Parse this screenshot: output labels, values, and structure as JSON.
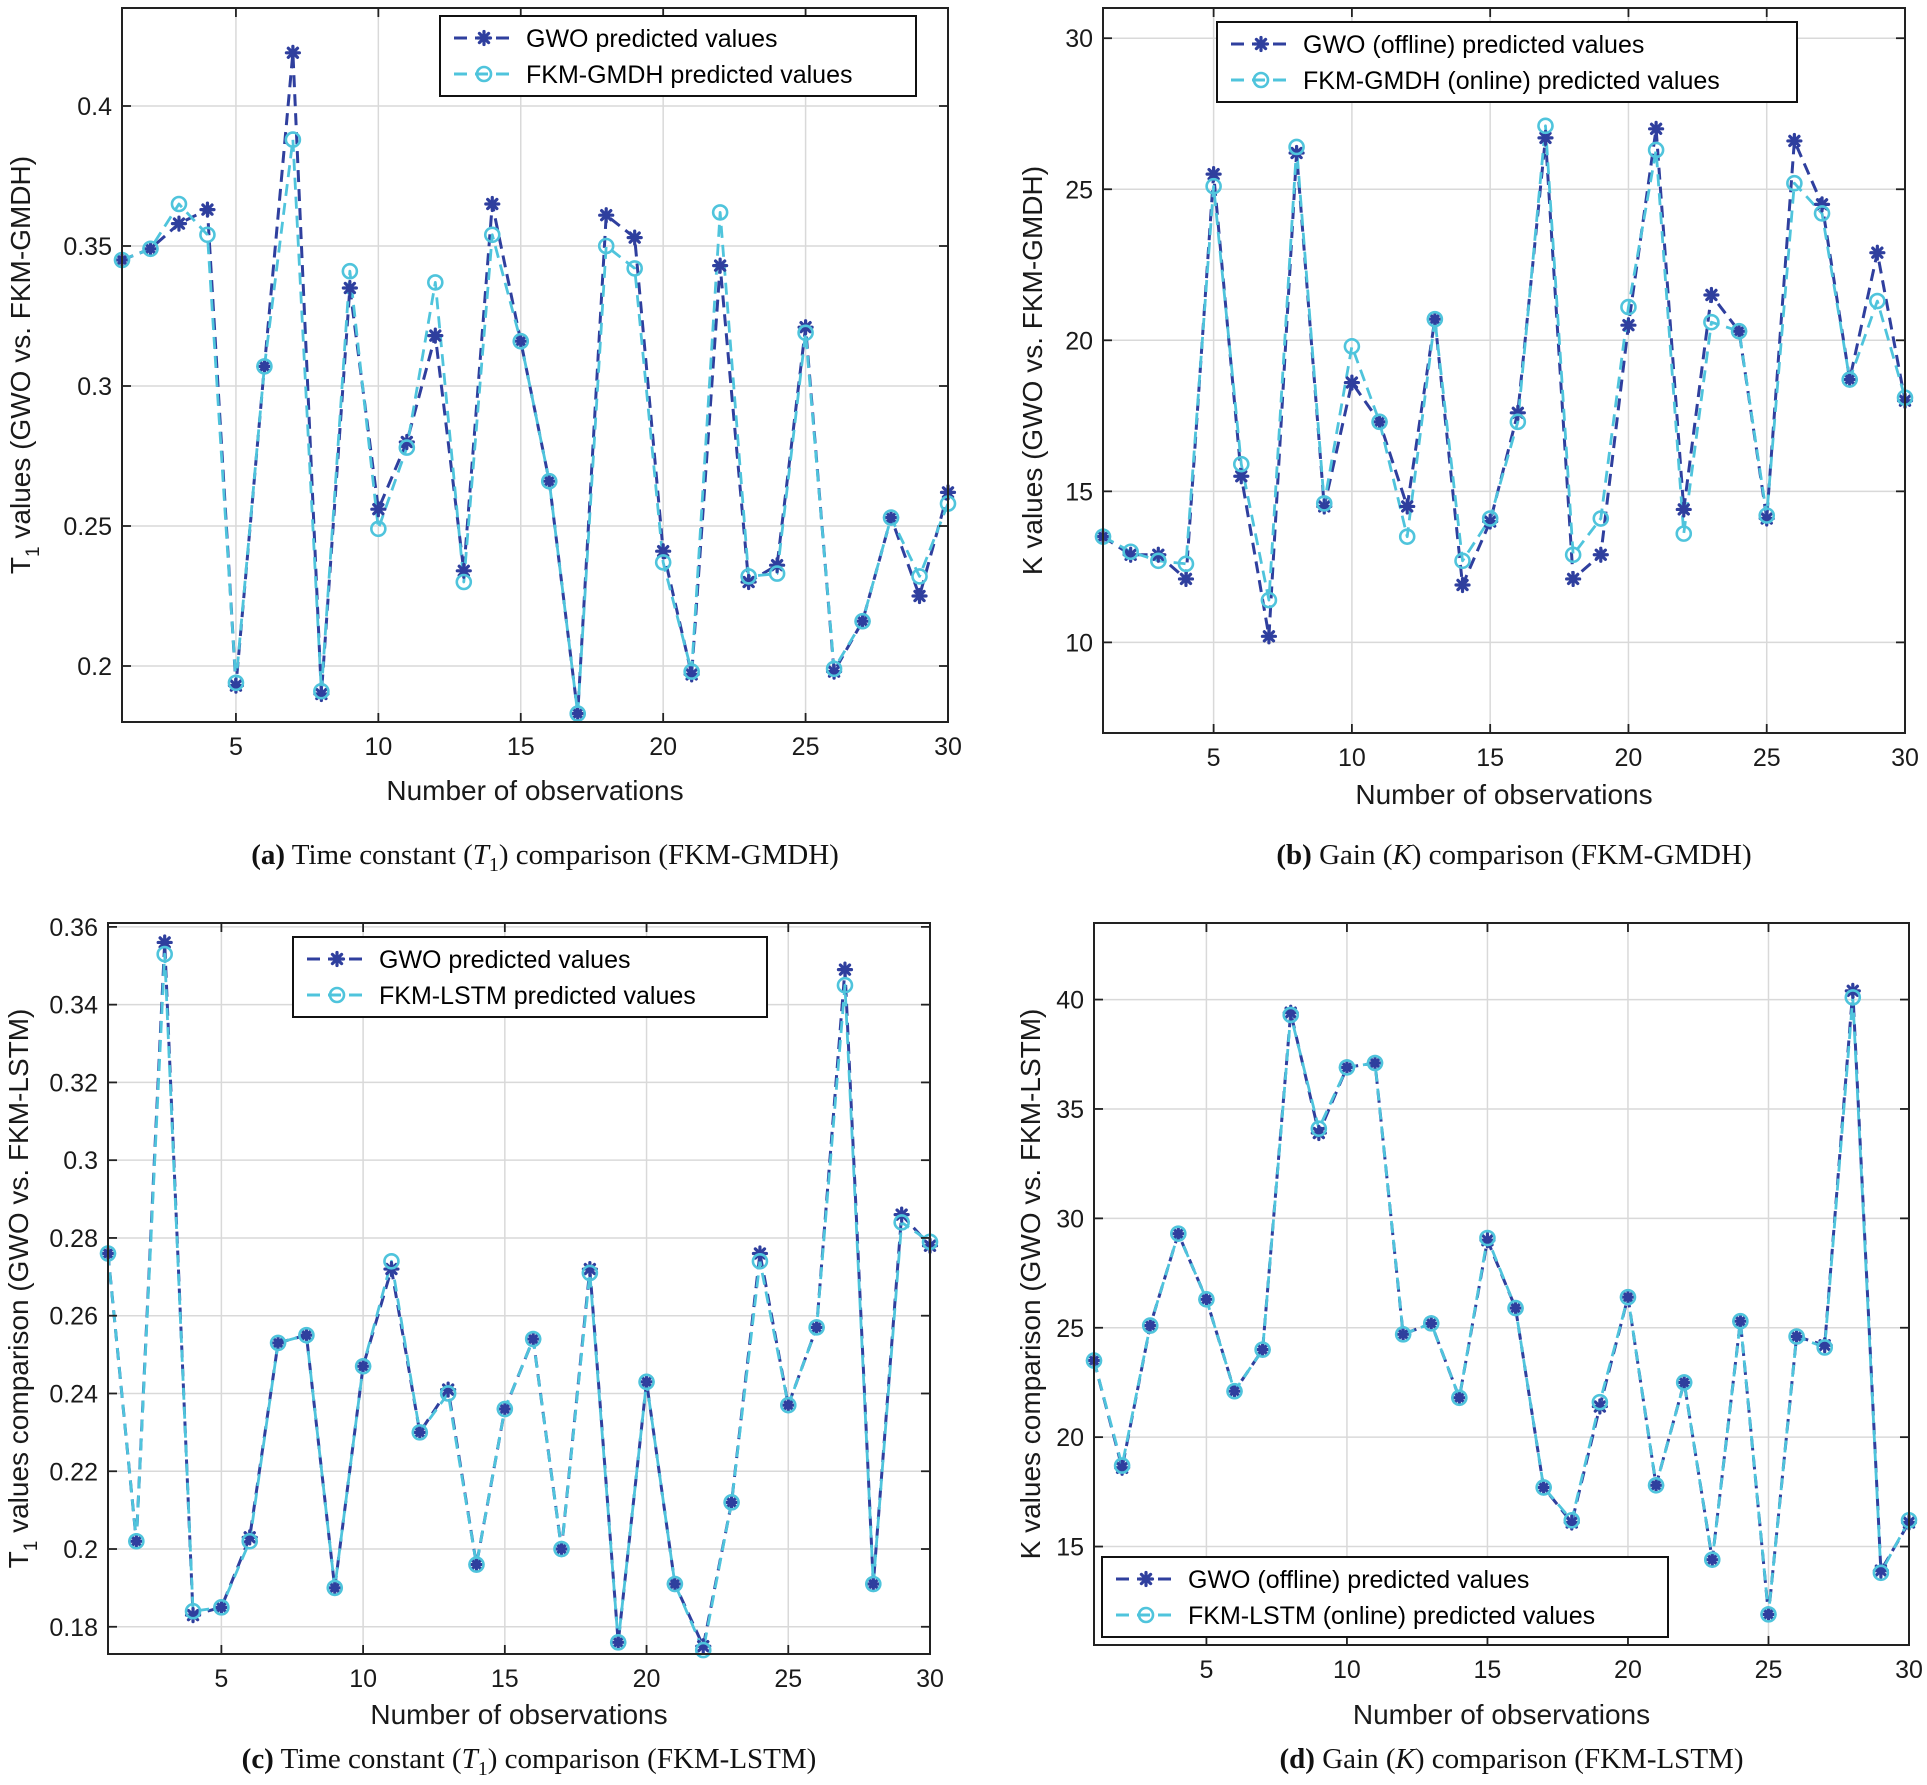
{
  "colors": {
    "gwo": "#2f3f9e",
    "fkm": "#4fc4dc",
    "grid": "#d9d9d9",
    "axis": "#222222"
  },
  "chart_data": [
    {
      "type": "line",
      "panel": "a",
      "x": [
        1,
        2,
        3,
        4,
        5,
        6,
        7,
        8,
        9,
        10,
        11,
        12,
        13,
        14,
        15,
        16,
        17,
        18,
        19,
        20,
        21,
        22,
        23,
        24,
        25,
        26,
        27,
        28,
        29,
        30
      ],
      "series": [
        {
          "name": "GWO predicted values",
          "marker": "asterisk",
          "values": [
            0.345,
            0.349,
            0.358,
            0.363,
            0.193,
            0.307,
            0.419,
            0.19,
            0.335,
            0.256,
            0.28,
            0.318,
            0.234,
            0.365,
            0.316,
            0.266,
            0.183,
            0.361,
            0.353,
            0.241,
            0.197,
            0.343,
            0.23,
            0.236,
            0.321,
            0.198,
            0.216,
            0.253,
            0.225,
            0.262
          ]
        },
        {
          "name": "FKM-GMDH predicted values",
          "marker": "circle",
          "values": [
            0.345,
            0.349,
            0.365,
            0.354,
            0.194,
            0.307,
            0.388,
            0.191,
            0.341,
            0.249,
            0.278,
            0.337,
            0.23,
            0.354,
            0.316,
            0.266,
            0.183,
            0.35,
            0.342,
            0.237,
            0.198,
            0.362,
            0.232,
            0.233,
            0.319,
            0.199,
            0.216,
            0.253,
            0.232,
            0.258
          ]
        }
      ],
      "title": "",
      "xlabel": "Number of observations",
      "ylabel_parts": [
        "T",
        "1",
        " values (GWO vs. FKM-GMDH)"
      ],
      "xlim": [
        1,
        30
      ],
      "ylim": [
        0.18,
        0.435
      ],
      "xticks": [
        5,
        10,
        15,
        20,
        25,
        30
      ],
      "xtick_labels": [
        "5",
        "10",
        "15",
        "20",
        "25",
        "30"
      ],
      "yticks": [
        0.2,
        0.25,
        0.3,
        0.35,
        0.4
      ],
      "ytick_labels": [
        "0.2",
        "0.25",
        "0.3",
        "0.35",
        "0.4"
      ],
      "legend": "top-right",
      "grid": true,
      "caption": {
        "label": "(a)",
        "text_before": " Time constant (",
        "sym": "T",
        "sub": "1",
        "text_after": ") comparison (FKM-GMDH)"
      }
    },
    {
      "type": "line",
      "panel": "b",
      "x": [
        1,
        2,
        3,
        4,
        5,
        6,
        7,
        8,
        9,
        10,
        11,
        12,
        13,
        14,
        15,
        16,
        17,
        18,
        19,
        20,
        21,
        22,
        23,
        24,
        25,
        26,
        27,
        28,
        29,
        30
      ],
      "series": [
        {
          "name": "GWO (offline) predicted values",
          "marker": "asterisk",
          "values": [
            13.5,
            12.9,
            12.9,
            12.1,
            25.5,
            15.5,
            10.2,
            26.2,
            14.5,
            18.6,
            17.3,
            14.5,
            20.7,
            11.9,
            14.0,
            17.6,
            26.7,
            12.1,
            12.9,
            20.5,
            27.0,
            14.4,
            21.5,
            20.3,
            14.1,
            26.6,
            24.5,
            18.7,
            22.9,
            18.0
          ]
        },
        {
          "name": "FKM-GMDH (online) predicted values",
          "marker": "circle",
          "values": [
            13.5,
            13.0,
            12.7,
            12.6,
            25.1,
            15.9,
            11.4,
            26.4,
            14.6,
            19.8,
            17.3,
            13.5,
            20.7,
            12.7,
            14.1,
            17.3,
            27.1,
            12.9,
            14.1,
            21.1,
            26.3,
            13.6,
            20.6,
            20.3,
            14.2,
            25.2,
            24.2,
            18.7,
            21.3,
            18.1
          ]
        }
      ],
      "title": "",
      "xlabel": "Number of observations",
      "ylabel_parts": [
        "K values (GWO vs. FKM-GMDH)"
      ],
      "xlim": [
        1,
        30
      ],
      "ylim": [
        7,
        31
      ],
      "xticks": [
        5,
        10,
        15,
        20,
        25,
        30
      ],
      "xtick_labels": [
        "5",
        "10",
        "15",
        "20",
        "25",
        "30"
      ],
      "yticks": [
        10,
        15,
        20,
        25,
        30
      ],
      "ytick_labels": [
        "10",
        "15",
        "20",
        "25",
        "30"
      ],
      "legend": "top-right",
      "grid": true,
      "caption": {
        "label": "(b)",
        "text_before": " Gain (",
        "sym": "K",
        "sub": "",
        "text_after": ") comparison (FKM-GMDH)"
      }
    },
    {
      "type": "line",
      "panel": "c",
      "x": [
        1,
        2,
        3,
        4,
        5,
        6,
        7,
        8,
        9,
        10,
        11,
        12,
        13,
        14,
        15,
        16,
        17,
        18,
        19,
        20,
        21,
        22,
        23,
        24,
        25,
        26,
        27,
        28,
        29,
        30
      ],
      "series": [
        {
          "name": "GWO predicted values",
          "marker": "asterisk",
          "values": [
            0.276,
            0.202,
            0.356,
            0.183,
            0.185,
            0.203,
            0.253,
            0.255,
            0.19,
            0.247,
            0.272,
            0.23,
            0.241,
            0.196,
            0.236,
            0.254,
            0.2,
            0.272,
            0.176,
            0.243,
            0.191,
            0.175,
            0.212,
            0.276,
            0.237,
            0.257,
            0.349,
            0.191,
            0.286,
            0.278
          ]
        },
        {
          "name": "FKM-LSTM predicted values",
          "marker": "circle",
          "values": [
            0.276,
            0.202,
            0.353,
            0.184,
            0.185,
            0.202,
            0.253,
            0.255,
            0.19,
            0.247,
            0.274,
            0.23,
            0.24,
            0.196,
            0.236,
            0.254,
            0.2,
            0.271,
            0.176,
            0.243,
            0.191,
            0.174,
            0.212,
            0.274,
            0.237,
            0.257,
            0.345,
            0.191,
            0.284,
            0.279
          ]
        }
      ],
      "title": "",
      "xlabel": "Number of observations",
      "ylabel_parts": [
        "T",
        "1",
        "  values comparison  (GWO vs.  FKM-LSTM)"
      ],
      "xlim": [
        1,
        30
      ],
      "ylim": [
        0.173,
        0.361
      ],
      "xticks": [
        5,
        10,
        15,
        20,
        25,
        30
      ],
      "xtick_labels": [
        "5",
        "10",
        "15",
        "20",
        "25",
        "30"
      ],
      "yticks": [
        0.18,
        0.2,
        0.22,
        0.24,
        0.26,
        0.28,
        0.3,
        0.32,
        0.34,
        0.36
      ],
      "ytick_labels": [
        "0.18",
        "0.2",
        "0.22",
        "0.24",
        "0.26",
        "0.28",
        "0.3",
        "0.32",
        "0.34",
        "0.36"
      ],
      "legend": "top-center",
      "grid": true,
      "caption": {
        "label": "(c)",
        "text_before": " Time constant (",
        "sym": "T",
        "sub": "1",
        "text_after": ") comparison (FKM-LSTM)"
      }
    },
    {
      "type": "line",
      "panel": "d",
      "x": [
        1,
        2,
        3,
        4,
        5,
        6,
        7,
        8,
        9,
        10,
        11,
        12,
        13,
        14,
        15,
        16,
        17,
        18,
        19,
        20,
        21,
        22,
        23,
        24,
        25,
        26,
        27,
        28,
        29,
        30
      ],
      "series": [
        {
          "name": "GWO (offline) predicted values",
          "marker": "asterisk",
          "values": [
            23.5,
            18.6,
            25.1,
            29.3,
            26.3,
            22.1,
            24.0,
            39.4,
            33.9,
            36.9,
            37.1,
            24.7,
            25.2,
            21.8,
            29.0,
            25.9,
            17.7,
            16.1,
            21.4,
            26.4,
            17.8,
            22.5,
            14.4,
            25.3,
            11.9,
            24.6,
            24.2,
            40.4,
            13.9,
            16.1
          ]
        },
        {
          "name": "FKM-LSTM (online) predicted values",
          "marker": "circle",
          "values": [
            23.5,
            18.7,
            25.1,
            29.3,
            26.3,
            22.1,
            24.0,
            39.3,
            34.1,
            36.9,
            37.1,
            24.7,
            25.2,
            21.8,
            29.1,
            25.9,
            17.7,
            16.2,
            21.6,
            26.4,
            17.8,
            22.5,
            14.4,
            25.3,
            11.9,
            24.6,
            24.1,
            40.1,
            13.8,
            16.2
          ]
        }
      ],
      "title": "",
      "xlabel": "Number of observations",
      "ylabel_parts": [
        "K values comparison (GWO vs. FKM-LSTM)"
      ],
      "xlim": [
        1,
        30
      ],
      "ylim": [
        10.5,
        43.5
      ],
      "xticks": [
        5,
        10,
        15,
        20,
        25,
        30
      ],
      "xtick_labels": [
        "5",
        "10",
        "15",
        "20",
        "25",
        "30"
      ],
      "yticks": [
        15,
        20,
        25,
        30,
        35,
        40
      ],
      "ytick_labels": [
        "15",
        "20",
        "25",
        "30",
        "35",
        "40"
      ],
      "legend": "bottom-left",
      "grid": true,
      "caption": {
        "label": "(d)",
        "text_before": " Gain (",
        "sym": "K",
        "sub": "",
        "text_after": ") comparison (FKM-LSTM)"
      }
    }
  ]
}
